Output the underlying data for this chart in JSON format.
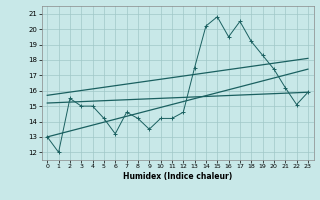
{
  "xlabel": "Humidex (Indice chaleur)",
  "background_color": "#c8e8e8",
  "grid_color": "#a0c8c8",
  "line_color": "#1a6060",
  "x_min": -0.5,
  "x_max": 23.5,
  "y_min": 11.5,
  "y_max": 21.5,
  "x_ticks": [
    0,
    1,
    2,
    3,
    4,
    5,
    6,
    7,
    8,
    9,
    10,
    11,
    12,
    13,
    14,
    15,
    16,
    17,
    18,
    19,
    20,
    21,
    22,
    23
  ],
  "y_ticks": [
    12,
    13,
    14,
    15,
    16,
    17,
    18,
    19,
    20,
    21
  ],
  "jagged_x": [
    0,
    1,
    2,
    3,
    4,
    5,
    6,
    7,
    8,
    9,
    10,
    11,
    12,
    13,
    14,
    15,
    16,
    17,
    18,
    19,
    20,
    21,
    22,
    23
  ],
  "jagged_y": [
    13,
    12,
    15.5,
    15,
    15,
    14.2,
    13.2,
    14.6,
    14.2,
    13.5,
    14.2,
    14.2,
    14.6,
    17.5,
    20.2,
    20.8,
    19.5,
    20.5,
    19.2,
    18.3,
    17.4,
    16.2,
    15.1,
    15.9
  ],
  "trend1_x": [
    0,
    23
  ],
  "trend1_y": [
    15.7,
    18.1
  ],
  "trend2_x": [
    0,
    23
  ],
  "trend2_y": [
    15.2,
    15.9
  ],
  "trend3_x": [
    0,
    23
  ],
  "trend3_y": [
    13.0,
    17.4
  ]
}
